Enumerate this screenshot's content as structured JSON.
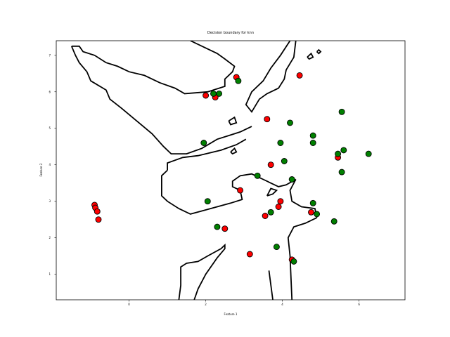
{
  "chart_data": {
    "type": "scatter",
    "title": "Decision boundary for knn",
    "xlabel": "Feature 1",
    "ylabel": "Feature 2",
    "xlim": [
      -1.9,
      7.2
    ],
    "ylim": [
      0.3,
      7.4
    ],
    "xticks": [
      0,
      2,
      4,
      6
    ],
    "yticks": [
      1,
      2,
      3,
      4,
      5,
      6,
      7
    ],
    "grid": false,
    "legend": "none",
    "colors": {
      "class_red": "#ff0000",
      "class_green": "#008000",
      "edge": "#000000",
      "boundary": "#000000"
    },
    "series": [
      {
        "class": "red",
        "points": [
          [
            2.0,
            5.9
          ],
          [
            2.25,
            5.85
          ],
          [
            2.8,
            6.4
          ],
          [
            4.45,
            6.45
          ],
          [
            3.6,
            5.25
          ],
          [
            3.7,
            4.0
          ],
          [
            2.9,
            3.3
          ],
          [
            3.95,
            3.0
          ],
          [
            3.9,
            2.85
          ],
          [
            3.55,
            2.6
          ],
          [
            4.75,
            2.7
          ],
          [
            5.45,
            4.2
          ],
          [
            2.5,
            2.25
          ],
          [
            3.15,
            1.55
          ],
          [
            4.25,
            1.4
          ],
          [
            -0.9,
            2.9
          ],
          [
            -0.88,
            2.82
          ],
          [
            -0.83,
            2.72
          ],
          [
            -0.8,
            2.5
          ]
        ]
      },
      {
        "class": "green",
        "points": [
          [
            2.2,
            5.95
          ],
          [
            2.35,
            5.95
          ],
          [
            2.85,
            6.3
          ],
          [
            5.55,
            5.45
          ],
          [
            4.2,
            5.15
          ],
          [
            4.8,
            4.8
          ],
          [
            4.8,
            4.6
          ],
          [
            3.95,
            4.6
          ],
          [
            5.45,
            4.3
          ],
          [
            5.6,
            4.4
          ],
          [
            6.25,
            4.3
          ],
          [
            1.95,
            4.6
          ],
          [
            4.05,
            4.1
          ],
          [
            5.55,
            3.8
          ],
          [
            3.35,
            3.7
          ],
          [
            4.25,
            3.6
          ],
          [
            2.05,
            3.0
          ],
          [
            4.8,
            2.95
          ],
          [
            3.7,
            2.7
          ],
          [
            4.9,
            2.65
          ],
          [
            5.35,
            2.45
          ],
          [
            2.3,
            2.3
          ],
          [
            3.85,
            1.75
          ],
          [
            4.3,
            1.35
          ]
        ]
      }
    ],
    "decision_boundary": [
      [
        [
          -1.5,
          7.25
        ],
        [
          -1.3,
          7.25
        ],
        [
          -1.2,
          7.1
        ],
        [
          -0.9,
          7.0
        ],
        [
          -0.6,
          6.8
        ],
        [
          -0.3,
          6.7
        ],
        [
          0.0,
          6.55
        ],
        [
          0.4,
          6.45
        ],
        [
          0.8,
          6.25
        ],
        [
          1.2,
          6.1
        ],
        [
          1.45,
          5.95
        ],
        [
          2.05,
          6.0
        ],
        [
          2.35,
          6.1
        ],
        [
          2.5,
          6.15
        ],
        [
          2.5,
          6.35
        ],
        [
          2.7,
          6.55
        ],
        [
          2.75,
          6.7
        ],
        [
          2.5,
          6.9
        ],
        [
          2.3,
          7.05
        ],
        [
          1.6,
          7.4
        ]
      ],
      [
        [
          -1.5,
          7.25
        ],
        [
          -1.4,
          7.0
        ],
        [
          -1.3,
          6.8
        ],
        [
          -1.1,
          6.55
        ],
        [
          -1.0,
          6.3
        ],
        [
          -0.6,
          6.05
        ],
        [
          -0.5,
          5.8
        ],
        [
          -0.2,
          5.55
        ],
        [
          0.2,
          5.2
        ],
        [
          0.6,
          4.85
        ],
        [
          0.9,
          4.5
        ],
        [
          1.1,
          4.3
        ],
        [
          1.5,
          4.3
        ],
        [
          1.9,
          4.45
        ],
        [
          2.3,
          4.7
        ],
        [
          2.6,
          4.8
        ],
        [
          2.9,
          4.9
        ],
        [
          3.2,
          5.05
        ]
      ],
      [
        [
          4.35,
          7.4
        ],
        [
          4.3,
          6.95
        ],
        [
          4.1,
          6.6
        ],
        [
          4.05,
          6.35
        ],
        [
          3.9,
          6.1
        ],
        [
          3.6,
          5.95
        ],
        [
          3.4,
          5.8
        ],
        [
          3.2,
          5.45
        ],
        [
          3.05,
          5.65
        ],
        [
          3.2,
          6.0
        ],
        [
          3.5,
          6.3
        ],
        [
          3.7,
          6.65
        ],
        [
          3.95,
          7.0
        ],
        [
          4.2,
          7.4
        ]
      ],
      [
        [
          1.0,
          3.85
        ],
        [
          1.0,
          4.05
        ],
        [
          1.4,
          4.2
        ],
        [
          1.8,
          4.25
        ],
        [
          2.4,
          4.4
        ],
        [
          2.8,
          4.55
        ],
        [
          3.05,
          4.7
        ]
      ],
      [
        [
          1.0,
          3.85
        ],
        [
          0.85,
          3.7
        ],
        [
          0.85,
          3.15
        ],
        [
          1.0,
          3.0
        ],
        [
          1.3,
          2.8
        ],
        [
          1.6,
          2.65
        ],
        [
          1.95,
          2.75
        ],
        [
          2.3,
          2.85
        ],
        [
          2.65,
          2.95
        ],
        [
          2.95,
          3.05
        ],
        [
          2.9,
          3.3
        ],
        [
          2.7,
          3.4
        ],
        [
          2.7,
          3.55
        ],
        [
          2.9,
          3.7
        ],
        [
          3.2,
          3.75
        ],
        [
          3.5,
          3.6
        ],
        [
          3.9,
          3.4
        ],
        [
          4.1,
          3.45
        ],
        [
          4.35,
          3.6
        ]
      ],
      [
        [
          4.35,
          3.6
        ],
        [
          4.2,
          3.3
        ],
        [
          4.25,
          3.0
        ],
        [
          4.5,
          2.85
        ],
        [
          4.85,
          2.8
        ],
        [
          4.9,
          2.55
        ]
      ],
      [
        [
          4.9,
          2.55
        ],
        [
          4.6,
          2.4
        ],
        [
          4.3,
          2.3
        ],
        [
          4.15,
          2.0
        ],
        [
          4.2,
          1.5
        ],
        [
          4.25,
          0.3
        ]
      ],
      [
        [
          1.3,
          0.3
        ],
        [
          1.35,
          0.7
        ],
        [
          1.35,
          1.2
        ],
        [
          1.5,
          1.3
        ],
        [
          1.8,
          1.35
        ],
        [
          2.05,
          1.5
        ],
        [
          2.4,
          1.7
        ],
        [
          2.5,
          1.8
        ],
        [
          2.5,
          1.7
        ],
        [
          2.3,
          1.45
        ],
        [
          2.0,
          1.0
        ],
        [
          1.8,
          0.6
        ],
        [
          1.7,
          0.3
        ]
      ],
      [
        [
          3.65,
          1.1
        ],
        [
          3.75,
          0.3
        ]
      ],
      [
        [
          3.6,
          3.15
        ],
        [
          3.7,
          3.35
        ],
        [
          3.85,
          3.3
        ],
        [
          3.75,
          3.2
        ],
        [
          3.6,
          3.15
        ]
      ],
      [
        [
          4.65,
          6.95
        ],
        [
          4.75,
          7.05
        ],
        [
          4.8,
          6.95
        ],
        [
          4.7,
          6.9
        ],
        [
          4.65,
          6.95
        ]
      ],
      [
        [
          4.9,
          7.1
        ],
        [
          4.95,
          7.15
        ],
        [
          5.0,
          7.1
        ],
        [
          4.95,
          7.05
        ],
        [
          4.9,
          7.1
        ]
      ],
      [
        [
          2.65,
          4.35
        ],
        [
          2.75,
          4.45
        ],
        [
          2.8,
          4.35
        ],
        [
          2.7,
          4.3
        ],
        [
          2.65,
          4.35
        ]
      ],
      [
        [
          2.6,
          5.2
        ],
        [
          2.75,
          5.3
        ],
        [
          2.8,
          5.15
        ],
        [
          2.65,
          5.1
        ],
        [
          2.6,
          5.2
        ]
      ]
    ]
  }
}
